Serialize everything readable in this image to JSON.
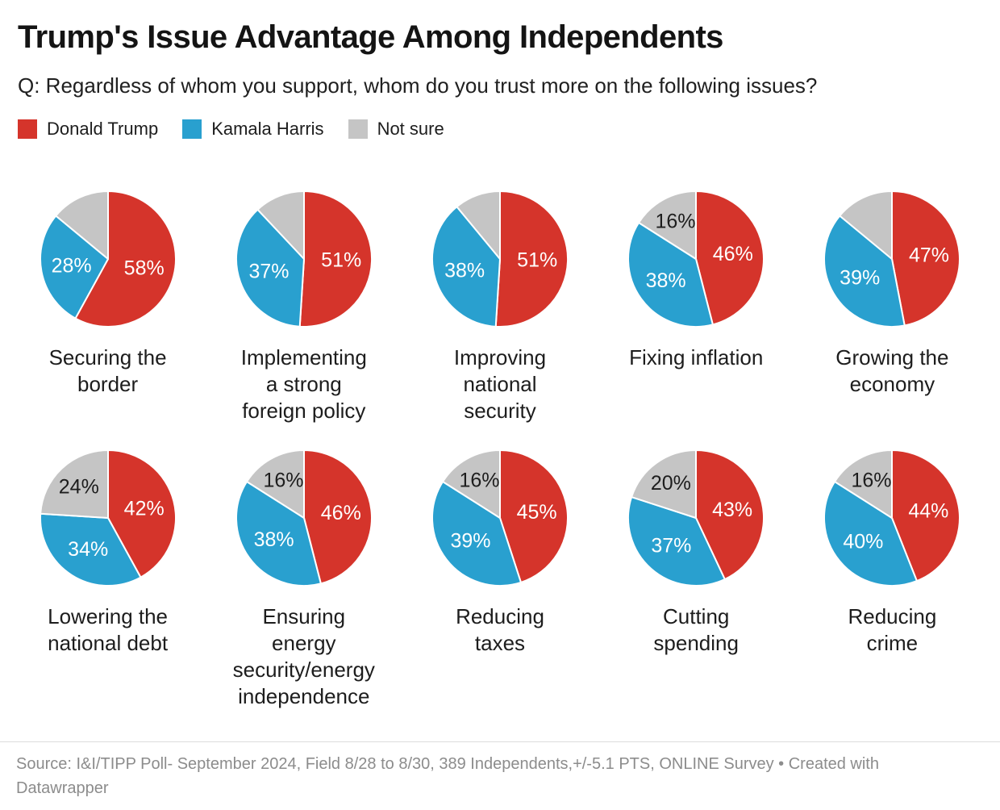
{
  "header": {
    "title": "Trump's Issue Advantage Among Independents",
    "subtitle": "Q: Regardless of whom you support, whom do you trust more on the following issues?"
  },
  "legend": {
    "items": [
      {
        "label": "Donald Trump",
        "color": "#d5342b"
      },
      {
        "label": "Kamala Harris",
        "color": "#29a0cf"
      },
      {
        "label": "Not sure",
        "color": "#c5c5c5"
      }
    ]
  },
  "colors": {
    "trump_red": "#d5342b",
    "harris_blue": "#29a0cf",
    "not_sure_gray": "#c5c5c5",
    "text_dark": "#1d1d1d",
    "footer_gray": "#8c8c8c",
    "slice_border": "#ffffff"
  },
  "chart_data": {
    "type": "pie",
    "title": "Trump's Issue Advantage Among Independents",
    "question": "Q: Regardless of whom you support, whom do you trust more on the following issues?",
    "series_labels": [
      "Donald Trump",
      "Kamala Harris",
      "Not sure"
    ],
    "colors": [
      "#d5342b",
      "#29a0cf",
      "#c5c5c5"
    ],
    "value_label_colors": [
      "#ffffff",
      "#ffffff",
      "#1d1d1d"
    ],
    "start_angle_deg": 0,
    "direction": "clockwise",
    "layout": {
      "rows": 2,
      "cols": 5,
      "legend_position": "top-left"
    },
    "charts": [
      {
        "category": "Securing the border",
        "caption_lines": "Securing the\nborder",
        "values": [
          58,
          28,
          14
        ],
        "value_labels": [
          "58%",
          "28%",
          null
        ]
      },
      {
        "category": "Implementing a strong foreign policy",
        "caption_lines": "Implementing\na strong\nforeign policy",
        "values": [
          51,
          37,
          12
        ],
        "value_labels": [
          "51%",
          "37%",
          null
        ]
      },
      {
        "category": "Improving national security",
        "caption_lines": "Improving\nnational\nsecurity",
        "values": [
          51,
          38,
          11
        ],
        "value_labels": [
          "51%",
          "38%",
          null
        ]
      },
      {
        "category": "Fixing inflation",
        "caption_lines": "Fixing inflation",
        "values": [
          46,
          38,
          16
        ],
        "value_labels": [
          "46%",
          "38%",
          "16%"
        ]
      },
      {
        "category": "Growing the economy",
        "caption_lines": "Growing the\neconomy",
        "values": [
          47,
          39,
          14
        ],
        "value_labels": [
          "47%",
          "39%",
          null
        ]
      },
      {
        "category": "Lowering the national debt",
        "caption_lines": "Lowering the\nnational debt",
        "values": [
          42,
          34,
          24
        ],
        "value_labels": [
          "42%",
          "34%",
          "24%"
        ]
      },
      {
        "category": "Ensuring energy security/energy independence",
        "caption_lines": "Ensuring\nenergy\nsecurity/energy\nindependence",
        "values": [
          46,
          38,
          16
        ],
        "value_labels": [
          "46%",
          "38%",
          "16%"
        ]
      },
      {
        "category": "Reducing taxes",
        "caption_lines": "Reducing\ntaxes",
        "values": [
          45,
          39,
          16
        ],
        "value_labels": [
          "45%",
          "39%",
          "16%"
        ]
      },
      {
        "category": "Cutting spending",
        "caption_lines": "Cutting\nspending",
        "values": [
          43,
          37,
          20
        ],
        "value_labels": [
          "43%",
          "37%",
          "20%"
        ]
      },
      {
        "category": "Reducing crime",
        "caption_lines": "Reducing\ncrime",
        "values": [
          44,
          40,
          16
        ],
        "value_labels": [
          "44%",
          "40%",
          "16%"
        ]
      }
    ]
  },
  "footer": {
    "text": "Source: I&I/TIPP Poll- September 2024, Field 8/28 to 8/30, 389 Independents,+/-5.1 PTS, ONLINE Survey • Created with Datawrapper"
  }
}
